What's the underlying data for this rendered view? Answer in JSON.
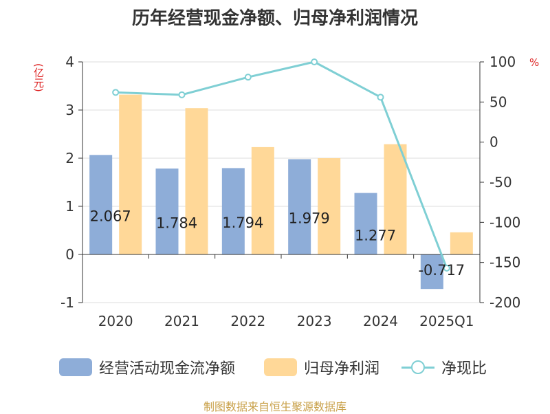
{
  "title": "历年经营现金净额、归母净利润情况",
  "left_unit": "(亿元)",
  "right_unit": "%",
  "source": "制图数据来自恒生聚源数据库",
  "colors": {
    "cash": "#8eadd8",
    "profit": "#ffd898",
    "ratio": "#7fcfd4",
    "unit": "#dd2222",
    "axis": "#333333",
    "grid": "#dddddd"
  },
  "chart_data": {
    "type": "bar",
    "categories": [
      "2020",
      "2021",
      "2022",
      "2023",
      "2024",
      "2025Q1"
    ],
    "series": [
      {
        "name": "经营活动现金流净额",
        "values": [
          2.067,
          1.784,
          1.794,
          1.979,
          1.277,
          -0.717
        ],
        "labels": [
          "2.067",
          "1.784",
          "1.794",
          "1.979",
          "1.277",
          "-0.717"
        ]
      },
      {
        "name": "归母净利润",
        "values": [
          3.32,
          3.04,
          2.23,
          2.0,
          2.29,
          0.46
        ]
      },
      {
        "name": "净现比",
        "type": "line",
        "axis": "right",
        "values": [
          62,
          59,
          81,
          100,
          56,
          -157
        ]
      }
    ],
    "left_axis": {
      "ylim": [
        -1,
        4
      ],
      "ticks": [
        "-1",
        "0",
        "1",
        "2",
        "3",
        "4"
      ]
    },
    "right_axis": {
      "ylim": [
        -200,
        100
      ],
      "ticks": [
        "-200",
        "-150",
        "-100",
        "-50",
        "0",
        "50",
        "100"
      ]
    },
    "legend": {
      "position": "bottom"
    },
    "grid": true
  }
}
